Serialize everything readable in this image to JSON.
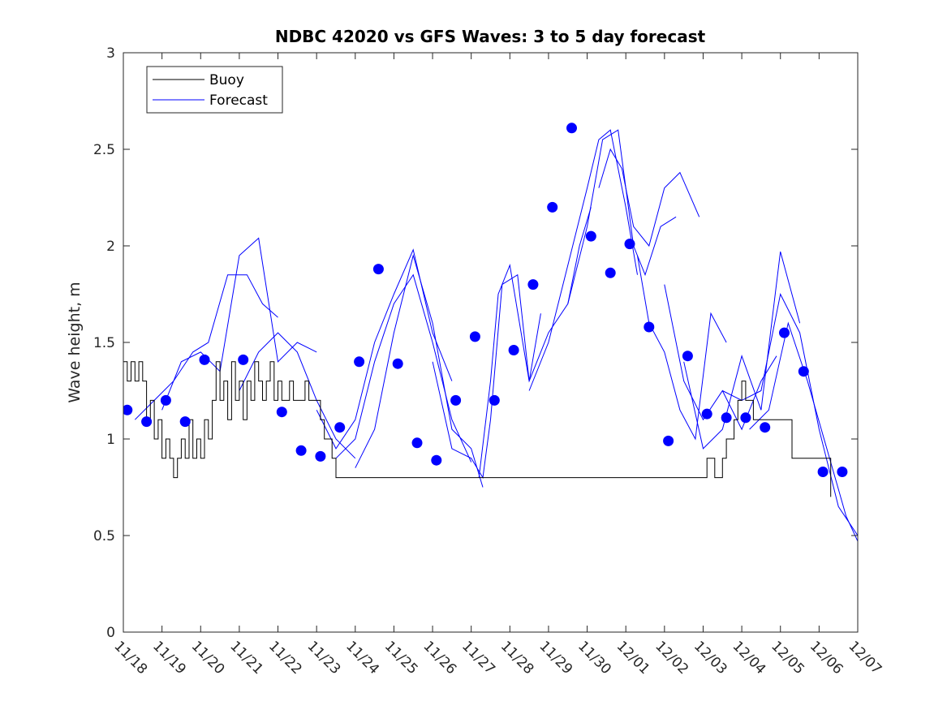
{
  "chart_data": {
    "type": "line",
    "title": "NDBC 42020 vs GFS Waves: 3 to 5 day forecast",
    "xlabel": "",
    "ylabel": "Wave height, m",
    "xlim": [
      0,
      19
    ],
    "ylim": [
      0,
      3
    ],
    "x_tick_labels": [
      "11/18",
      "11/19",
      "11/20",
      "11/21",
      "11/22",
      "11/23",
      "11/24",
      "11/25",
      "11/26",
      "11/27",
      "11/28",
      "11/29",
      "11/30",
      "12/01",
      "12/02",
      "12/03",
      "12/04",
      "12/05",
      "12/06",
      "12/07"
    ],
    "y_ticks": [
      0,
      0.5,
      1,
      1.5,
      2,
      2.5,
      3
    ],
    "y_tick_labels": [
      "0",
      "0.5",
      "1",
      "1.5",
      "2",
      "2.5",
      "3"
    ],
    "legend": {
      "position": "top-left",
      "entries": [
        "Buoy",
        "Forecast"
      ]
    },
    "colors": {
      "buoy": "#000000",
      "forecast": "#0000ff",
      "markers": "#0000ff"
    },
    "series": [
      {
        "name": "Buoy",
        "x": [
          0,
          0.1,
          0.2,
          0.3,
          0.4,
          0.5,
          0.6,
          0.7,
          0.8,
          0.9,
          1.0,
          1.1,
          1.2,
          1.3,
          1.4,
          1.5,
          1.6,
          1.7,
          1.8,
          1.9,
          2.0,
          2.1,
          2.2,
          2.3,
          2.4,
          2.5,
          2.6,
          2.7,
          2.8,
          2.9,
          3.0,
          3.1,
          3.2,
          3.3,
          3.4,
          3.5,
          3.6,
          3.7,
          3.8,
          3.9,
          4.0,
          4.1,
          4.2,
          4.3,
          4.4,
          4.5,
          4.6,
          4.7,
          4.8,
          4.9,
          5.0,
          5.1,
          5.2,
          5.3,
          5.4,
          5.5,
          5.6,
          5.7,
          15.1,
          15.2,
          15.3,
          15.4,
          15.5,
          15.6,
          15.7,
          15.8,
          15.9,
          16.0,
          16.1,
          16.2,
          16.3,
          17.3,
          18.3
        ],
        "values": [
          1.4,
          1.3,
          1.4,
          1.3,
          1.4,
          1.3,
          1.1,
          1.2,
          1.0,
          1.1,
          0.9,
          1.0,
          0.9,
          0.8,
          0.9,
          1.0,
          0.9,
          1.1,
          0.9,
          1.0,
          0.9,
          1.1,
          1.0,
          1.2,
          1.4,
          1.2,
          1.3,
          1.1,
          1.4,
          1.2,
          1.3,
          1.1,
          1.3,
          1.2,
          1.4,
          1.3,
          1.2,
          1.3,
          1.4,
          1.2,
          1.3,
          1.2,
          1.2,
          1.3,
          1.2,
          1.2,
          1.2,
          1.3,
          1.2,
          1.2,
          1.2,
          1.1,
          1.0,
          1.0,
          0.9,
          0.8,
          0.8,
          0.8,
          0.9,
          0.9,
          0.8,
          0.8,
          0.9,
          1.0,
          1.0,
          1.1,
          1.2,
          1.3,
          1.2,
          1.2,
          1.1,
          0.9,
          0.7
        ]
      },
      {
        "name": "Forecast",
        "traces": [
          {
            "x": [
              0.3,
              0.8,
              1.3,
              1.8,
              2.2,
              2.7,
              3.2,
              3.6,
              4.0
            ],
            "values": [
              1.1,
              1.2,
              1.3,
              1.45,
              1.5,
              1.85,
              1.85,
              1.7,
              1.63
            ]
          },
          {
            "x": [
              1.0,
              1.5,
              2.0,
              2.5,
              3.0,
              3.5,
              4.0,
              4.5,
              5.0
            ],
            "values": [
              1.15,
              1.4,
              1.45,
              1.35,
              1.95,
              2.04,
              1.4,
              1.5,
              1.45
            ]
          },
          {
            "x": [
              3.0,
              3.5,
              4.0,
              4.5,
              5.0,
              5.5,
              6.0
            ],
            "values": [
              1.25,
              1.45,
              1.55,
              1.45,
              1.2,
              1.0,
              0.9
            ]
          },
          {
            "x": [
              5.0,
              5.5,
              6.0,
              6.5,
              7.0,
              7.5,
              8.0,
              8.5
            ],
            "values": [
              1.15,
              0.95,
              1.1,
              1.5,
              1.75,
              1.98,
              1.55,
              1.3
            ]
          },
          {
            "x": [
              5.5,
              6.0,
              6.5,
              7.0,
              7.5,
              8.0,
              8.5,
              9.0
            ],
            "values": [
              0.9,
              1.0,
              1.4,
              1.7,
              1.85,
              1.5,
              1.1,
              0.88
            ]
          },
          {
            "x": [
              6.0,
              6.5,
              7.0,
              7.5,
              8.0,
              8.5,
              9.0,
              9.3
            ],
            "values": [
              0.85,
              1.05,
              1.55,
              1.95,
              1.6,
              1.05,
              0.95,
              0.75
            ]
          },
          {
            "x": [
              8.0,
              8.5,
              9.0,
              9.3,
              9.5,
              9.8,
              10.2,
              10.5,
              10.8
            ],
            "values": [
              1.4,
              0.95,
              0.9,
              0.8,
              1.1,
              1.8,
              1.85,
              1.3,
              1.65
            ]
          },
          {
            "x": [
              9.2,
              9.5,
              9.7,
              10.0,
              10.5,
              11.0,
              11.5,
              11.8,
              12.1
            ],
            "values": [
              0.8,
              1.3,
              1.75,
              1.9,
              1.3,
              1.55,
              1.7,
              2.0,
              2.2
            ]
          },
          {
            "x": [
              10.5,
              11.0,
              11.5,
              12.0,
              12.3,
              12.6,
              13.0,
              13.3
            ],
            "values": [
              1.25,
              1.5,
              1.9,
              2.3,
              2.55,
              2.6,
              2.2,
              1.85
            ]
          },
          {
            "x": [
              11.5,
              12.0,
              12.4,
              12.8,
              13.2,
              13.5,
              13.9,
              14.3
            ],
            "values": [
              1.7,
              2.1,
              2.55,
              2.6,
              2.0,
              1.85,
              2.1,
              2.15
            ]
          },
          {
            "x": [
              12.3,
              12.6,
              12.9,
              13.2,
              13.6,
              14.0,
              14.4,
              14.9
            ],
            "values": [
              2.3,
              2.5,
              2.4,
              2.1,
              2.0,
              2.3,
              2.38,
              2.15
            ]
          },
          {
            "x": [
              13.3,
              13.6,
              14.0,
              14.4,
              14.8,
              15.2,
              15.6
            ],
            "values": [
              1.95,
              1.6,
              1.45,
              1.15,
              1.0,
              1.65,
              1.5
            ]
          },
          {
            "x": [
              14.0,
              14.5,
              15.0,
              15.5,
              16.0,
              16.5,
              16.9
            ],
            "values": [
              1.8,
              1.3,
              1.1,
              1.25,
              1.05,
              1.3,
              1.43
            ]
          },
          {
            "x": [
              14.5,
              15.0,
              15.5,
              16.0,
              16.5,
              17.0,
              17.5
            ],
            "values": [
              1.4,
              0.95,
              1.05,
              1.43,
              1.15,
              1.97,
              1.6
            ]
          },
          {
            "x": [
              15.5,
              16.0,
              16.5,
              17.0,
              17.5,
              18.0,
              18.5,
              19.0
            ],
            "values": [
              1.25,
              1.2,
              1.25,
              1.75,
              1.55,
              1.05,
              0.65,
              0.5
            ]
          },
          {
            "x": [
              16.2,
              16.7,
              17.2,
              17.7,
              18.2,
              18.7,
              19.0
            ],
            "values": [
              1.05,
              1.15,
              1.6,
              1.3,
              0.95,
              0.6,
              0.47
            ]
          }
        ]
      },
      {
        "name": "Forecast markers",
        "x": [
          0.1,
          0.6,
          1.1,
          1.6,
          2.1,
          3.1,
          4.1,
          4.6,
          5.1,
          5.6,
          6.1,
          6.6,
          7.1,
          7.6,
          8.1,
          8.6,
          9.1,
          9.6,
          10.1,
          10.6,
          11.1,
          11.6,
          12.1,
          12.6,
          13.1,
          13.6,
          14.1,
          14.6,
          15.1,
          15.6,
          16.1,
          16.6,
          17.1,
          17.6,
          18.1,
          18.6
        ],
        "values": [
          1.15,
          1.09,
          1.2,
          1.09,
          1.41,
          1.41,
          1.14,
          0.94,
          0.91,
          1.06,
          1.4,
          1.88,
          1.39,
          0.98,
          0.89,
          1.2,
          1.53,
          1.2,
          1.46,
          1.8,
          2.2,
          2.61,
          2.05,
          1.86,
          2.01,
          1.58,
          0.99,
          1.43,
          1.13,
          1.11,
          1.11,
          1.06,
          1.55,
          1.35,
          0.83,
          0.83
        ]
      }
    ]
  }
}
